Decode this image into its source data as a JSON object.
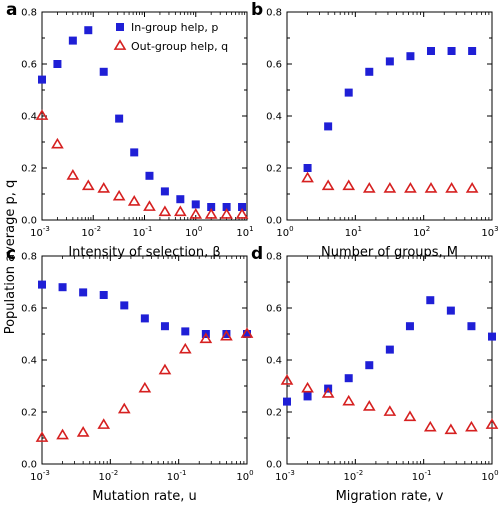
{
  "figure": {
    "shared_ylabel": "Population average p, q",
    "legend": [
      {
        "label": "In-group help, p",
        "marker": "square",
        "color": "#1f1fd6"
      },
      {
        "label": "Out-group help, q",
        "marker": "triangle",
        "color": "#d62020"
      }
    ],
    "colors": {
      "p": "#1f1fd6",
      "q": "#d62020"
    }
  },
  "chart_data": [
    {
      "panel": "a",
      "type": "scatter",
      "xlabel": "Intensity of selection, β",
      "xscale": "log",
      "xlim": [
        0.001,
        10
      ],
      "ylim": [
        0,
        0.8
      ],
      "xticks": [
        {
          "base": "10",
          "exp": "-3"
        },
        {
          "base": "10",
          "exp": "-2"
        },
        {
          "base": "10",
          "exp": "-1"
        },
        {
          "base": "10",
          "exp": "0"
        },
        {
          "base": "10",
          "exp": "1"
        }
      ],
      "yticks": [
        "0.0",
        "0.2",
        "0.4",
        "0.6",
        "0.8"
      ],
      "legend_position": "top-right",
      "series": [
        {
          "name": "In-group help, p",
          "x": [
            0.001,
            0.002,
            0.004,
            0.008,
            0.016,
            0.032,
            0.063,
            0.125,
            0.25,
            0.5,
            1,
            2,
            4,
            8
          ],
          "y": [
            0.54,
            0.6,
            0.69,
            0.73,
            0.57,
            0.39,
            0.26,
            0.17,
            0.11,
            0.08,
            0.06,
            0.05,
            0.05,
            0.05
          ]
        },
        {
          "name": "Out-group help, q",
          "x": [
            0.001,
            0.002,
            0.004,
            0.008,
            0.016,
            0.032,
            0.063,
            0.125,
            0.25,
            0.5,
            1,
            2,
            4,
            8
          ],
          "y": [
            0.4,
            0.29,
            0.17,
            0.13,
            0.12,
            0.09,
            0.07,
            0.05,
            0.03,
            0.03,
            0.02,
            0.02,
            0.02,
            0.02
          ]
        }
      ]
    },
    {
      "panel": "b",
      "type": "scatter",
      "xlabel": "Number of groups, M",
      "xscale": "log",
      "xlim": [
        1,
        1000
      ],
      "ylim": [
        0,
        0.8
      ],
      "xticks": [
        {
          "base": "10",
          "exp": "0"
        },
        {
          "base": "10",
          "exp": "1"
        },
        {
          "base": "10",
          "exp": "2"
        },
        {
          "base": "10",
          "exp": "3"
        }
      ],
      "yticks": [
        "0.0",
        "0.2",
        "0.4",
        "0.6",
        "0.8"
      ],
      "series": [
        {
          "name": "In-group help, p",
          "x": [
            2,
            4,
            8,
            16,
            32,
            64,
            128,
            256,
            512
          ],
          "y": [
            0.2,
            0.36,
            0.49,
            0.57,
            0.61,
            0.63,
            0.65,
            0.65,
            0.65
          ]
        },
        {
          "name": "Out-group help, q",
          "x": [
            2,
            4,
            8,
            16,
            32,
            64,
            128,
            256,
            512
          ],
          "y": [
            0.16,
            0.13,
            0.13,
            0.12,
            0.12,
            0.12,
            0.12,
            0.12,
            0.12
          ]
        }
      ]
    },
    {
      "panel": "c",
      "type": "scatter",
      "xlabel": "Mutation rate, u",
      "xscale": "log",
      "xlim": [
        0.001,
        1
      ],
      "ylim": [
        0,
        0.8
      ],
      "xticks": [
        {
          "base": "10",
          "exp": "-3"
        },
        {
          "base": "10",
          "exp": "-2"
        },
        {
          "base": "10",
          "exp": "-1"
        },
        {
          "base": "10",
          "exp": "0"
        }
      ],
      "yticks": [
        "0.0",
        "0.2",
        "0.4",
        "0.6",
        "0.8"
      ],
      "series": [
        {
          "name": "In-group help, p",
          "x": [
            0.001,
            0.002,
            0.004,
            0.008,
            0.016,
            0.032,
            0.063,
            0.125,
            0.25,
            0.5,
            1
          ],
          "y": [
            0.69,
            0.68,
            0.66,
            0.65,
            0.61,
            0.56,
            0.53,
            0.51,
            0.5,
            0.5,
            0.5
          ]
        },
        {
          "name": "Out-group help, q",
          "x": [
            0.001,
            0.002,
            0.004,
            0.008,
            0.016,
            0.032,
            0.063,
            0.125,
            0.25,
            0.5,
            1
          ],
          "y": [
            0.1,
            0.11,
            0.12,
            0.15,
            0.21,
            0.29,
            0.36,
            0.44,
            0.48,
            0.49,
            0.5
          ]
        }
      ]
    },
    {
      "panel": "d",
      "type": "scatter",
      "xlabel": "Migration rate, v",
      "xscale": "log",
      "xlim": [
        0.001,
        1
      ],
      "ylim": [
        0,
        0.8
      ],
      "xticks": [
        {
          "base": "10",
          "exp": "-3"
        },
        {
          "base": "10",
          "exp": "-2"
        },
        {
          "base": "10",
          "exp": "-1"
        },
        {
          "base": "10",
          "exp": "0"
        }
      ],
      "yticks": [
        "0.0",
        "0.2",
        "0.4",
        "0.6",
        "0.8"
      ],
      "series": [
        {
          "name": "In-group help, p",
          "x": [
            0.001,
            0.002,
            0.004,
            0.008,
            0.016,
            0.032,
            0.063,
            0.125,
            0.25,
            0.5,
            1
          ],
          "y": [
            0.24,
            0.26,
            0.29,
            0.33,
            0.38,
            0.44,
            0.53,
            0.63,
            0.59,
            0.53,
            0.49
          ]
        },
        {
          "name": "Out-group help, q",
          "x": [
            0.001,
            0.002,
            0.004,
            0.008,
            0.016,
            0.032,
            0.063,
            0.125,
            0.25,
            0.5,
            1
          ],
          "y": [
            0.32,
            0.29,
            0.27,
            0.24,
            0.22,
            0.2,
            0.18,
            0.14,
            0.13,
            0.14,
            0.15
          ]
        }
      ]
    }
  ]
}
